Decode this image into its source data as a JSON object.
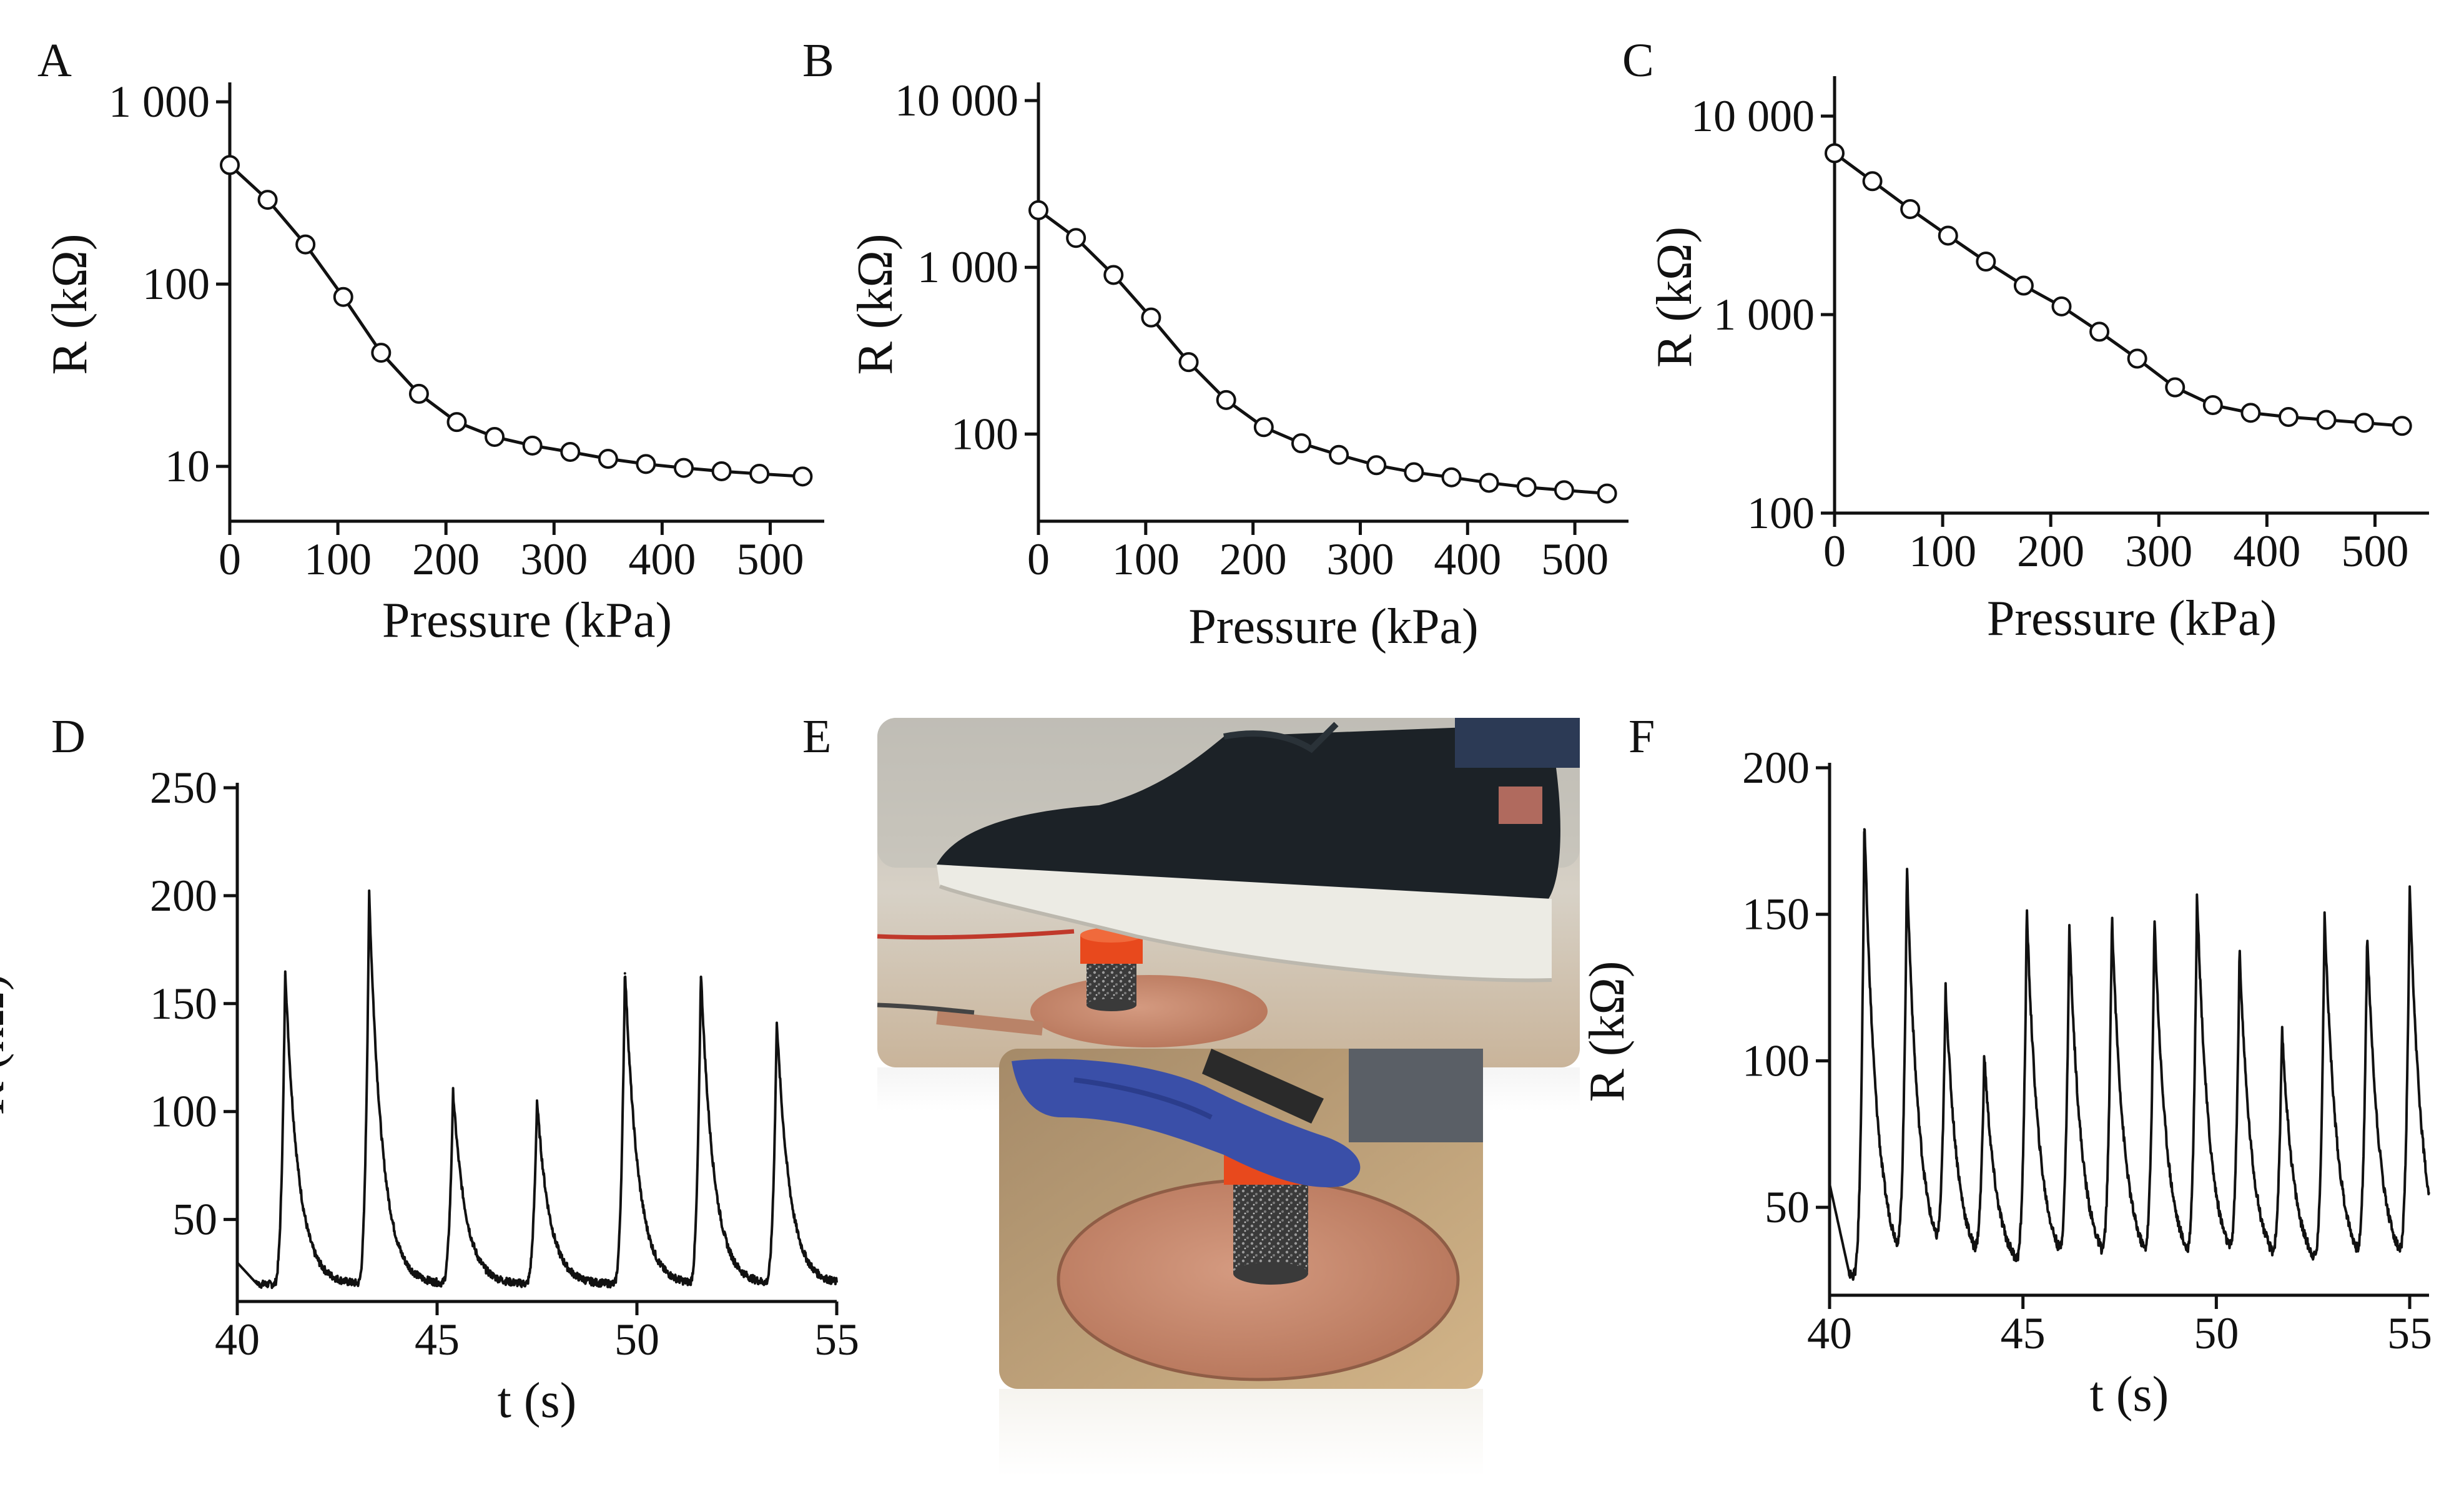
{
  "chart_data": [
    {
      "panel": "A",
      "type": "scatter",
      "scale_y": "log",
      "title": "",
      "xlabel": "Pressure (kPa)",
      "ylabel": "R (kΩ)",
      "xlim": [
        0,
        550
      ],
      "ylim": [
        5,
        1200
      ],
      "xticks": [
        0,
        100,
        200,
        300,
        400,
        500
      ],
      "yticks": [
        10,
        100,
        1000
      ],
      "ytick_labels": [
        "10",
        "100",
        "1 000"
      ],
      "x": [
        0,
        35,
        70,
        105,
        140,
        175,
        210,
        245,
        280,
        315,
        350,
        385,
        420,
        455,
        490,
        530
      ],
      "y": [
        450,
        290,
        165,
        85,
        42,
        25,
        17.5,
        14.5,
        13,
        12,
        11,
        10.3,
        9.8,
        9.4,
        9.1,
        8.8
      ]
    },
    {
      "panel": "B",
      "type": "scatter",
      "scale_y": "log",
      "title": "",
      "xlabel": "Pressure (kPa)",
      "ylabel": "R (kΩ)",
      "xlim": [
        0,
        550
      ],
      "ylim": [
        30,
        12000
      ],
      "xticks": [
        0,
        100,
        200,
        300,
        400,
        500
      ],
      "yticks": [
        100,
        1000,
        10000
      ],
      "ytick_labels": [
        "100",
        "1 000",
        "10 000"
      ],
      "x": [
        0,
        35,
        70,
        105,
        140,
        175,
        210,
        245,
        280,
        315,
        350,
        385,
        420,
        455,
        490,
        530
      ],
      "y": [
        2200,
        1500,
        900,
        500,
        270,
        160,
        110,
        88,
        75,
        65,
        59,
        55,
        51,
        48,
        46,
        44
      ]
    },
    {
      "panel": "C",
      "type": "scatter",
      "scale_y": "log",
      "title": "",
      "xlabel": "Pressure (kPa)",
      "ylabel": "R (kΩ)",
      "xlim": [
        0,
        550
      ],
      "ylim": [
        100,
        15000
      ],
      "xticks": [
        0,
        100,
        200,
        300,
        400,
        500
      ],
      "yticks": [
        100,
        1000,
        10000
      ],
      "ytick_labels": [
        "100",
        "1 000",
        "10 000"
      ],
      "x": [
        0,
        35,
        70,
        105,
        140,
        175,
        210,
        245,
        280,
        315,
        350,
        385,
        420,
        455,
        490,
        525
      ],
      "y": [
        6500,
        4700,
        3400,
        2500,
        1850,
        1400,
        1100,
        820,
        600,
        430,
        350,
        320,
        305,
        295,
        285,
        275
      ]
    },
    {
      "panel": "D",
      "type": "line",
      "title": "",
      "xlabel": "t (s)",
      "ylabel": "R (kΩ)",
      "xlim": [
        40,
        55
      ],
      "ylim": [
        12,
        250
      ],
      "xticks": [
        40,
        45,
        50,
        55
      ],
      "yticks": [
        50,
        100,
        150,
        200,
        250
      ],
      "baseline": 17,
      "peaks": [
        {
          "t": 41.2,
          "r": 163
        },
        {
          "t": 43.3,
          "r": 198
        },
        {
          "t": 45.4,
          "r": 106
        },
        {
          "t": 47.5,
          "r": 102
        },
        {
          "t": 49.7,
          "r": 164
        },
        {
          "t": 51.6,
          "r": 162
        },
        {
          "t": 53.5,
          "r": 139
        }
      ]
    },
    {
      "panel": "F",
      "type": "line",
      "title": "",
      "xlabel": "t (s)",
      "ylabel": "R (kΩ)",
      "xlim": [
        40,
        55.5
      ],
      "ylim": [
        20,
        200
      ],
      "xticks": [
        40,
        45,
        50,
        55
      ],
      "yticks": [
        50,
        100,
        150,
        200
      ],
      "baseline": 24,
      "peaks": [
        {
          "t": 40.9,
          "r": 179
        },
        {
          "t": 42.0,
          "r": 158
        },
        {
          "t": 43.0,
          "r": 116
        },
        {
          "t": 44.0,
          "r": 95
        },
        {
          "t": 45.1,
          "r": 146
        },
        {
          "t": 46.2,
          "r": 139
        },
        {
          "t": 47.3,
          "r": 143
        },
        {
          "t": 48.4,
          "r": 142
        },
        {
          "t": 49.5,
          "r": 151
        },
        {
          "t": 50.6,
          "r": 131
        },
        {
          "t": 51.7,
          "r": 104
        },
        {
          "t": 52.8,
          "r": 145
        },
        {
          "t": 53.9,
          "r": 137
        },
        {
          "t": 55.0,
          "r": 152
        }
      ]
    }
  ],
  "photo": {
    "panel": "E",
    "top_scene": "shoe pressing a foam pressure sensor on a copper electrode",
    "bottom_scene": "gloved hand pressing the foam pressure sensor with orange cap"
  },
  "colors": {
    "ink": "#111111",
    "marker_fill": "#ffffff",
    "copper": "#c58b6f",
    "cap": "#e8491d",
    "shoe": "#1c2227",
    "sole": "#ecebe4",
    "glove": "#3a4fa8",
    "floor_top": "#c9b49a",
    "floor_bottom": "#caa97c"
  }
}
